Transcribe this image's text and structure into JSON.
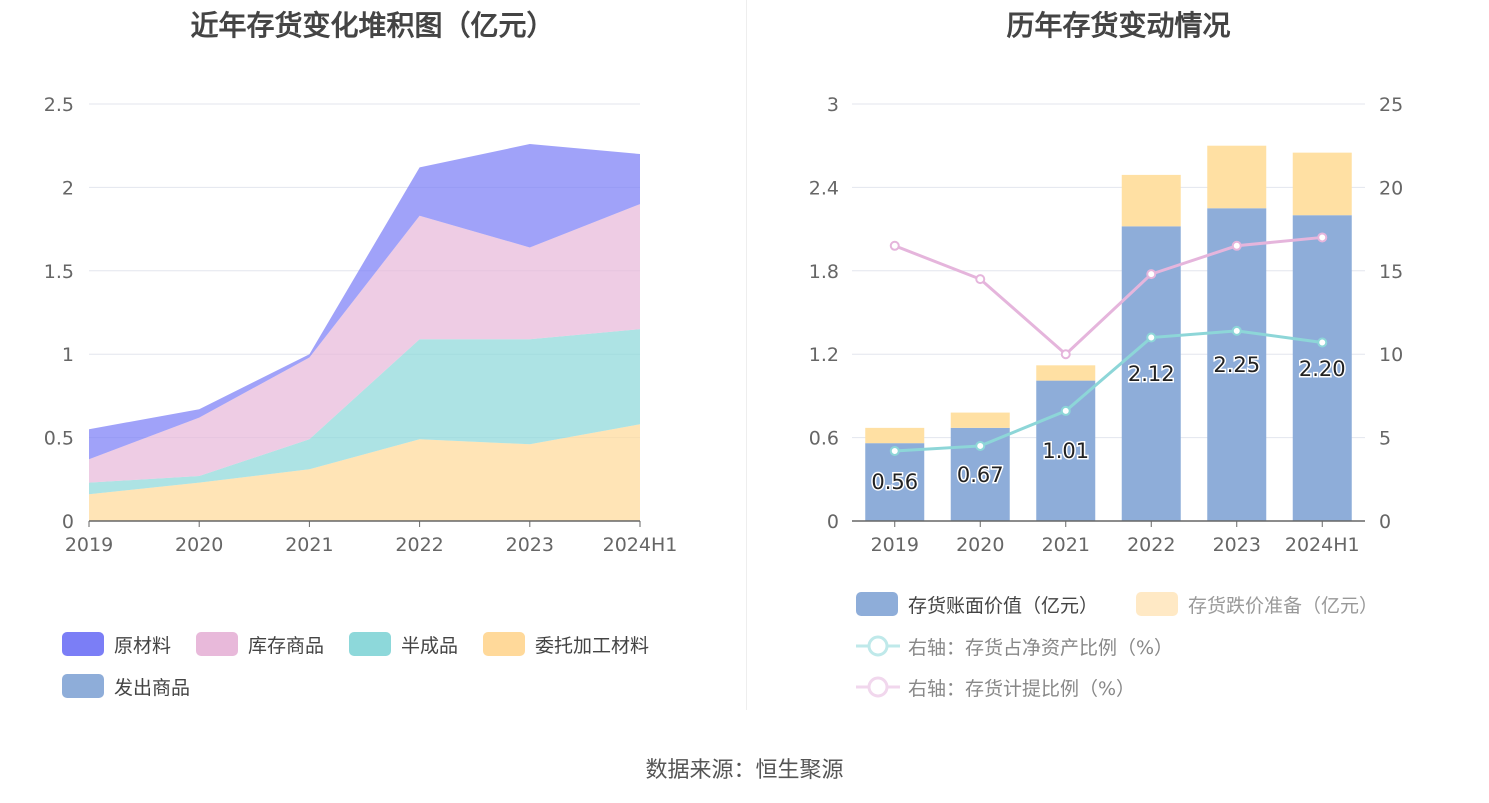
{
  "left_title": "近年存货变化堆积图（亿元）",
  "right_title": "历年存货变动情况",
  "source": "数据来源：恒生聚源",
  "colors": {
    "raw_material": "#7b7ef6",
    "inventory_goods": "#e8b9da",
    "semi_finished": "#8dd8da",
    "consigned": "#ffd99a",
    "shipped_goods": "#8eadd9",
    "bar_value": "#8eadd9",
    "bar_reserve": "#ffe0a3",
    "line_ratio": "#8dd6d8",
    "line_provision": "#e5b5dc"
  },
  "legend_left": [
    "原材料",
    "库存商品",
    "半成品",
    "委托加工材料",
    "发出商品"
  ],
  "legend_right": [
    "存货账面价值（亿元）",
    "存货跌价准备（亿元）",
    "右轴：存货占净资产比例（%）",
    "右轴：存货计提比例（%）"
  ],
  "chart_data": [
    {
      "type": "area",
      "title": "近年存货变化堆积图（亿元）",
      "categories": [
        "2019",
        "2020",
        "2021",
        "2022",
        "2023",
        "2024H1"
      ],
      "ylim": [
        0,
        2.5
      ],
      "yticks": [
        "0",
        "0.5",
        "1",
        "1.5",
        "2",
        "2.5"
      ],
      "stacked": true,
      "grid": true,
      "legend_position": "bottom",
      "series": [
        {
          "name": "委托加工材料",
          "values": [
            0.16,
            0.23,
            0.31,
            0.49,
            0.46,
            0.58
          ]
        },
        {
          "name": "半成品",
          "values": [
            0.07,
            0.04,
            0.18,
            0.6,
            0.63,
            0.57
          ]
        },
        {
          "name": "库存商品",
          "values": [
            0.14,
            0.35,
            0.49,
            0.74,
            0.55,
            0.75
          ]
        },
        {
          "name": "原材料",
          "values": [
            0.18,
            0.05,
            0.02,
            0.29,
            0.62,
            0.3
          ]
        },
        {
          "name": "发出商品",
          "values": [
            0,
            0,
            0,
            0,
            0,
            0
          ]
        }
      ]
    },
    {
      "type": "bar",
      "title": "历年存货变动情况",
      "categories": [
        "2019",
        "2020",
        "2021",
        "2022",
        "2023",
        "2024H1"
      ],
      "ylim": [
        0,
        3
      ],
      "yticks": [
        "0",
        "0.6",
        "1.2",
        "1.8",
        "2.4",
        "3"
      ],
      "y2lim": [
        0,
        25
      ],
      "y2ticks": [
        "0",
        "5",
        "10",
        "15",
        "20",
        "25"
      ],
      "stacked": true,
      "grid": true,
      "legend_position": "bottom",
      "series": [
        {
          "name": "存货账面价值（亿元）",
          "values": [
            0.56,
            0.67,
            1.01,
            2.12,
            2.25,
            2.2
          ],
          "labels": [
            "0.56",
            "0.67",
            "1.01",
            "2.12",
            "2.25",
            "2.20"
          ]
        },
        {
          "name": "存货跌价准备（亿元）",
          "values": [
            0.11,
            0.11,
            0.11,
            0.37,
            0.45,
            0.45
          ]
        },
        {
          "name": "右轴：存货占净资产比例（%）",
          "type": "line",
          "axis": "right",
          "values": [
            4.2,
            4.5,
            6.6,
            11.0,
            11.4,
            10.7
          ]
        },
        {
          "name": "右轴：存货计提比例（%）",
          "type": "line",
          "axis": "right",
          "values": [
            16.5,
            14.5,
            10.0,
            14.8,
            16.5,
            17.0
          ]
        }
      ]
    }
  ]
}
